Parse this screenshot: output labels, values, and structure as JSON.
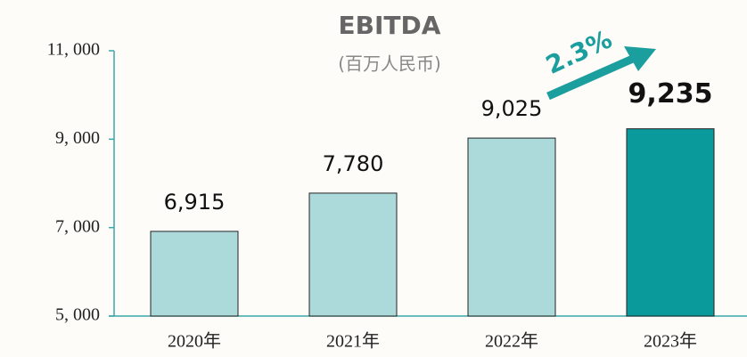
{
  "chart_data": {
    "type": "bar",
    "title": "EBITDA",
    "subtitle": "(百万人民币)",
    "categories": [
      "2020年",
      "2021年",
      "2022年",
      "2023年"
    ],
    "values": [
      6915,
      7780,
      9025,
      9235
    ],
    "value_labels": [
      "6,915",
      "7,780",
      "9,025",
      "9,235"
    ],
    "colors": [
      "#acdadb",
      "#acdadb",
      "#acdadb",
      "#0a9a9b"
    ],
    "ylim": [
      5000,
      11000
    ],
    "yticks": [
      {
        "value": 5000,
        "label": "5, 000"
      },
      {
        "value": 7000,
        "label": "7, 000"
      },
      {
        "value": 9000,
        "label": "9, 000"
      },
      {
        "value": 11000,
        "label": "11, 000"
      }
    ],
    "annotation": "2.3%"
  }
}
